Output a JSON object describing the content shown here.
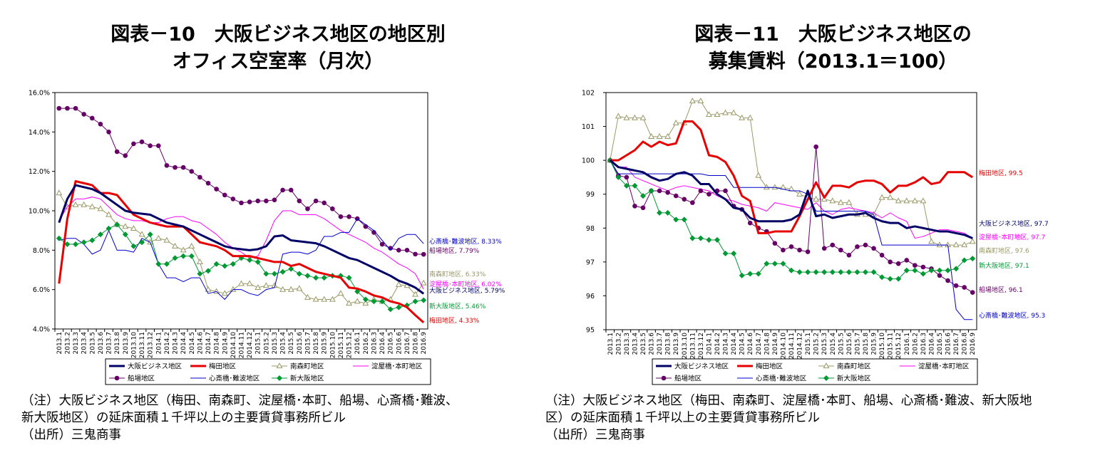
{
  "panels": [
    {
      "title_line1": "図表－10　大阪ビジネス地区の地区別",
      "title_line2": "オフィス空室率（月次）",
      "notes": [
        "（注）大阪ビジネス地区（梅田、南森町、淀屋橋･本町、船場、心斎橋･難波、",
        "新大阪地区）の延床面積１千坪以上の主要賃貸事務所ビル",
        "（出所）三鬼商事"
      ]
    },
    {
      "title_line1": "図表－11　大阪ビジネス地区の",
      "title_line2": "募集賃料（2013.1＝100）",
      "notes": [
        "（注）大阪ビジネス地区（梅田、南森町、淀屋橋･本町、船場、心斎橋･難波、新大阪地",
        "区）の延床面積１千坪以上の主要賃貸事務所ビル",
        "（出所）三鬼商事"
      ]
    }
  ],
  "colors": {
    "osaka": "#000066",
    "umeda": "#e60000",
    "minamimorimachi": "#999966",
    "yodoyabashi": "#ff00ff",
    "semba": "#660066",
    "shinsaibashi": "#0000cc",
    "shinosaka": "#009933"
  },
  "chart_data": [
    {
      "type": "line",
      "x": [
        "2013.1",
        "2013.2",
        "2013.3",
        "2013.4",
        "2013.5",
        "2013.6",
        "2013.7",
        "2013.8",
        "2013.9",
        "2013.10",
        "2013.11",
        "2013.12",
        "2014.1",
        "2014.2",
        "2014.3",
        "2014.4",
        "2014.5",
        "2014.6",
        "2014.7",
        "2014.8",
        "2014.9",
        "2014.10",
        "2014.11",
        "2014.12",
        "2015.1",
        "2015.2",
        "2015.3",
        "2015.4",
        "2015.5",
        "2015.6",
        "2015.7",
        "2015.8",
        "2015.9",
        "2015.10",
        "2015.11",
        "2015.12",
        "2016.1",
        "2016.2",
        "2016.3",
        "2016.4",
        "2016.5",
        "2016.6",
        "2016.7",
        "2016.8",
        "2016.9"
      ],
      "x_tick_labels": [
        "2013.1",
        "2013.2",
        "2013.3",
        "2013.4",
        "2013.5",
        "2013.6",
        "2013.7",
        "2013.8",
        "2013.9",
        "2013.10",
        "2013.11",
        "2013.12",
        "2014.1",
        "2014.2",
        "2014.3",
        "2014.4",
        "2014.5",
        "2014.6",
        "2014.7",
        "2014.8",
        "2014.9",
        "2014.10",
        "2014.11",
        "2014.12",
        "2015.1",
        "2015.2",
        "2015.3",
        "2015.4",
        "2015.5",
        "2015.6",
        "2015.7",
        "2015.8",
        "2015.9",
        "2015.10",
        "2015.11",
        "2015.12",
        "2016.1",
        "2016.2",
        "2016.3",
        "2016.4",
        "2016.5",
        "2016.6",
        "2016.7",
        "2016.8",
        "2016.9"
      ],
      "ylim": [
        4,
        16
      ],
      "y_ticks": [
        4,
        6,
        8,
        10,
        12,
        14,
        16
      ],
      "y_tick_labels": [
        "4.0%",
        "6.0%",
        "8.0%",
        "10.0%",
        "12.0%",
        "14.0%",
        "16.0%"
      ],
      "grid": false,
      "legend_placement": "bottom",
      "series": [
        {
          "key": "osaka",
          "name": "大阪ビジネス地区",
          "marker": "none",
          "width": 3,
          "values": [
            9.4,
            10.6,
            11.3,
            11.2,
            11.1,
            10.9,
            10.6,
            10.3,
            10.0,
            9.9,
            9.85,
            9.8,
            9.6,
            9.4,
            9.3,
            9.2,
            9.0,
            8.8,
            8.6,
            8.4,
            8.2,
            8.1,
            8.05,
            8.0,
            8.05,
            8.2,
            8.7,
            8.75,
            8.5,
            8.45,
            8.4,
            8.35,
            8.2,
            8.0,
            7.8,
            7.6,
            7.5,
            7.3,
            7.1,
            6.9,
            6.7,
            6.45,
            6.3,
            6.1,
            5.79
          ],
          "end_label": "大阪ビジネス地区, 5.79%"
        },
        {
          "key": "umeda",
          "name": "梅田地区",
          "marker": "none",
          "width": 3,
          "values": [
            6.3,
            9.6,
            11.5,
            11.4,
            11.3,
            10.9,
            10.9,
            10.8,
            10.3,
            9.8,
            9.6,
            9.4,
            9.3,
            9.2,
            9.2,
            9.2,
            8.8,
            8.4,
            8.3,
            8.2,
            8.0,
            7.7,
            7.7,
            7.7,
            7.6,
            7.5,
            7.4,
            7.4,
            7.2,
            7.3,
            7.1,
            6.9,
            6.8,
            6.7,
            6.6,
            6.1,
            6.05,
            5.9,
            5.7,
            5.6,
            5.4,
            5.3,
            5.1,
            4.7,
            4.33
          ],
          "end_label": "梅田地区, 4.33%"
        },
        {
          "key": "minamimorimachi",
          "name": "南森町地区",
          "marker": "triangle",
          "width": 1,
          "values": [
            10.9,
            10.2,
            10.3,
            10.3,
            10.2,
            10.1,
            9.8,
            9.3,
            9.2,
            9.1,
            8.8,
            8.4,
            8.6,
            8.5,
            8.2,
            8.0,
            8.2,
            7.4,
            6.0,
            5.9,
            5.8,
            6.0,
            6.3,
            6.3,
            6.1,
            6.2,
            6.2,
            6.0,
            6.0,
            6.05,
            5.6,
            5.5,
            5.5,
            5.5,
            5.8,
            5.3,
            5.4,
            5.3,
            5.5,
            5.4,
            5.5,
            6.25,
            6.2,
            5.75,
            6.33
          ],
          "end_label": "南森町地区, 6.33%"
        },
        {
          "key": "yodoyabashi",
          "name": "淀屋橋･本町地区",
          "marker": "none",
          "width": 1,
          "values": [
            9.5,
            10.2,
            10.6,
            10.6,
            10.7,
            10.6,
            10.2,
            9.8,
            9.6,
            9.5,
            9.5,
            9.4,
            9.4,
            9.6,
            9.7,
            9.7,
            9.5,
            9.4,
            9.1,
            8.8,
            8.4,
            8.1,
            7.9,
            7.6,
            7.7,
            8.5,
            9.5,
            10.0,
            10.0,
            9.8,
            9.8,
            9.8,
            9.6,
            9.3,
            9.0,
            8.8,
            8.6,
            8.4,
            8.1,
            7.9,
            7.6,
            7.3,
            7.1,
            6.8,
            6.02
          ],
          "end_label": "淀屋橋･本町地区, 6.02%"
        },
        {
          "key": "semba",
          "name": "船場地区",
          "marker": "circle",
          "width": 1,
          "values": [
            15.2,
            15.2,
            15.2,
            14.9,
            14.7,
            14.4,
            14.0,
            13.0,
            12.8,
            13.4,
            13.5,
            13.3,
            13.3,
            12.3,
            12.2,
            12.2,
            12.0,
            11.7,
            11.4,
            11.1,
            10.8,
            10.6,
            10.4,
            10.45,
            10.5,
            10.5,
            10.55,
            11.05,
            11.05,
            10.5,
            10.1,
            10.5,
            10.4,
            10.1,
            9.7,
            9.7,
            9.6,
            9.2,
            8.9,
            8.3,
            8.1,
            8.0,
            8.0,
            7.8,
            7.79
          ],
          "end_label": "船場地区, 7.79%"
        },
        {
          "key": "shinsaibashi",
          "name": "心斎橋･難波地区",
          "marker": "none",
          "width": 1,
          "values": [
            8.5,
            8.6,
            8.6,
            8.3,
            7.8,
            8.0,
            9.0,
            8.0,
            8.0,
            7.9,
            8.6,
            8.4,
            7.3,
            6.6,
            6.6,
            6.4,
            6.6,
            6.6,
            5.8,
            5.9,
            5.5,
            6.0,
            6.0,
            5.8,
            5.7,
            6.0,
            6.1,
            7.8,
            7.9,
            7.9,
            7.8,
            8.0,
            8.7,
            8.7,
            8.9,
            8.9,
            9.6,
            9.3,
            9.0,
            8.5,
            8.0,
            8.6,
            8.8,
            8.8,
            8.33
          ],
          "end_label": "心斎橋･難波地区, 8.33%"
        },
        {
          "key": "shinosaka",
          "name": "新大阪地区",
          "marker": "diamond",
          "width": 1,
          "values": [
            8.6,
            8.3,
            8.3,
            8.4,
            8.5,
            8.8,
            9.1,
            9.3,
            8.8,
            8.2,
            8.4,
            8.8,
            7.3,
            7.3,
            7.6,
            7.7,
            7.7,
            6.8,
            6.95,
            7.3,
            7.2,
            7.3,
            7.6,
            7.5,
            7.4,
            6.8,
            6.8,
            6.9,
            7.05,
            6.8,
            6.7,
            6.6,
            6.6,
            6.7,
            6.7,
            6.6,
            5.9,
            5.5,
            5.4,
            5.4,
            5.0,
            5.1,
            5.2,
            5.4,
            5.46
          ],
          "end_label": "新大阪地区, 5.46%"
        }
      ],
      "legend": [
        "大阪ビジネス地区",
        "梅田地区",
        "南森町地区",
        "淀屋橋･本町地区",
        "船場地区",
        "心斎橋･難波地区",
        "新大阪地区"
      ]
    },
    {
      "type": "line",
      "x": [
        "2013.1",
        "2013.2",
        "2013.3",
        "2013.4",
        "2013.5",
        "2013.6",
        "2013.7",
        "2013.8",
        "2013.9",
        "2013.10",
        "2013.11",
        "2013.12",
        "2014.1",
        "2014.2",
        "2014.3",
        "2014.4",
        "2014.5",
        "2014.6",
        "2014.7",
        "2014.8",
        "2014.9",
        "2014.10",
        "2014.11",
        "2014.12",
        "2015.1",
        "2015.2",
        "2015.3",
        "2015.4",
        "2015.5",
        "2015.6",
        "2015.7",
        "2015.8",
        "2015.9",
        "2015.10",
        "2015.11",
        "2015.12",
        "2016.1",
        "2016.2",
        "2016.3",
        "2016.4",
        "2016.5",
        "2016.6",
        "2016.7",
        "2016.8",
        "2016.9"
      ],
      "x_tick_labels": [
        "2013.1",
        "2013.2",
        "2013.3",
        "2013.4",
        "2013.5",
        "2013.6",
        "2013.7",
        "2013.8",
        "2013.9",
        "2013.10",
        "2013.11",
        "2013.12",
        "2014.1",
        "2014.2",
        "2014.3",
        "2014.4",
        "2014.5",
        "2014.6",
        "2014.7",
        "2014.8",
        "2014.9",
        "2014.10",
        "2014.11",
        "2014.12",
        "2015.1",
        "2015.2",
        "2015.3",
        "2015.4",
        "2015.5",
        "2015.6",
        "2015.7",
        "2015.8",
        "2015.9",
        "2015.10",
        "2015.11",
        "2015.12",
        "2016.1",
        "2016.2",
        "2016.3",
        "2016.4",
        "2016.5",
        "2016.6",
        "2016.7",
        "2016.8",
        "2016.9"
      ],
      "ylim": [
        95,
        102
      ],
      "y_ticks": [
        95,
        96,
        97,
        98,
        99,
        100,
        101,
        102
      ],
      "y_tick_labels": [
        "95",
        "96",
        "97",
        "98",
        "99",
        "100",
        "101",
        "102"
      ],
      "grid": false,
      "legend_placement": "bottom",
      "series": [
        {
          "key": "osaka",
          "name": "大阪ビジネス地区",
          "marker": "none",
          "width": 3,
          "values": [
            100.0,
            99.8,
            99.75,
            99.7,
            99.65,
            99.5,
            99.4,
            99.45,
            99.6,
            99.65,
            99.55,
            99.3,
            99.3,
            99.0,
            98.85,
            98.6,
            98.55,
            98.3,
            98.2,
            98.2,
            98.2,
            98.2,
            98.25,
            98.4,
            99.1,
            98.35,
            98.4,
            98.3,
            98.35,
            98.4,
            98.4,
            98.45,
            98.3,
            98.2,
            98.15,
            98.15,
            98.0,
            98.05,
            98.0,
            97.95,
            97.9,
            97.9,
            97.85,
            97.8,
            97.7
          ],
          "end_label": "大阪ビジネス地区, 97.7"
        },
        {
          "key": "umeda",
          "name": "梅田地区",
          "marker": "none",
          "width": 3,
          "values": [
            100.0,
            100.0,
            100.15,
            100.3,
            100.55,
            100.4,
            100.55,
            100.45,
            100.5,
            101.15,
            101.15,
            100.9,
            100.15,
            100.1,
            99.95,
            99.55,
            98.95,
            98.8,
            97.85,
            97.85,
            97.9,
            97.9,
            97.9,
            98.35,
            98.85,
            99.35,
            98.9,
            99.25,
            99.25,
            99.2,
            99.35,
            99.4,
            99.4,
            99.3,
            99.05,
            99.25,
            99.25,
            99.35,
            99.5,
            99.3,
            99.35,
            99.65,
            99.65,
            99.65,
            99.5
          ],
          "end_label": "梅田地区, 99.5"
        },
        {
          "key": "minamimorimachi",
          "name": "南森町地区",
          "marker": "triangle",
          "width": 1,
          "values": [
            100.0,
            101.3,
            101.25,
            101.25,
            101.25,
            100.7,
            100.7,
            100.7,
            101.1,
            101.1,
            101.75,
            101.75,
            101.35,
            101.35,
            101.4,
            101.4,
            101.25,
            101.25,
            99.55,
            99.2,
            99.2,
            99.2,
            99.15,
            99.0,
            98.9,
            98.85,
            98.85,
            98.8,
            98.75,
            98.75,
            98.4,
            98.4,
            98.4,
            98.9,
            98.9,
            98.8,
            98.8,
            98.8,
            98.8,
            97.6,
            97.5,
            97.5,
            97.5,
            97.5,
            97.6
          ],
          "end_label": "南森町地区, 97.6"
        },
        {
          "key": "yodoyabashi",
          "name": "淀屋橋･本町地区",
          "marker": "none",
          "width": 1,
          "values": [
            100.0,
            99.8,
            99.8,
            99.5,
            99.4,
            99.3,
            99.2,
            99.1,
            99.2,
            99.25,
            99.2,
            99.15,
            99.1,
            98.95,
            98.85,
            98.8,
            98.7,
            98.65,
            98.6,
            98.5,
            98.75,
            98.7,
            98.65,
            98.6,
            98.55,
            98.75,
            98.5,
            98.4,
            98.55,
            98.6,
            98.55,
            98.5,
            98.45,
            98.3,
            98.45,
            98.3,
            98.2,
            97.7,
            97.75,
            97.85,
            97.95,
            97.95,
            97.9,
            97.85,
            97.7
          ],
          "end_label": "淀屋橋･本町地区, 97.7"
        },
        {
          "key": "semba",
          "name": "船場地区",
          "marker": "circle",
          "width": 1,
          "values": [
            100.0,
            99.55,
            99.5,
            98.65,
            98.6,
            99.1,
            99.1,
            99.05,
            98.95,
            98.85,
            98.75,
            99.1,
            99.0,
            99.1,
            99.1,
            98.65,
            98.55,
            98.15,
            98.0,
            97.9,
            97.55,
            97.35,
            97.45,
            97.35,
            97.3,
            100.4,
            97.4,
            97.5,
            97.35,
            97.2,
            97.45,
            97.5,
            97.4,
            97.2,
            97.0,
            96.95,
            97.05,
            96.9,
            96.85,
            96.8,
            96.6,
            96.45,
            96.3,
            96.25,
            96.1
          ],
          "end_label": "船場地区, 96.1"
        },
        {
          "key": "shinsaibashi",
          "name": "心斎橋･難波地区",
          "marker": "none",
          "width": 1,
          "values": [
            100.0,
            99.6,
            99.6,
            99.6,
            99.6,
            99.6,
            99.6,
            99.6,
            99.6,
            99.6,
            99.6,
            99.6,
            99.55,
            99.55,
            99.55,
            99.2,
            99.2,
            99.2,
            99.2,
            99.2,
            99.2,
            99.15,
            99.1,
            99.1,
            99.0,
            98.5,
            98.5,
            98.5,
            98.5,
            98.5,
            98.5,
            98.5,
            98.4,
            97.5,
            97.5,
            97.5,
            97.5,
            97.5,
            97.5,
            97.5,
            97.5,
            97.5,
            95.6,
            95.3,
            95.3
          ],
          "end_label": "心斎橋･難波地区, 95.3"
        },
        {
          "key": "shinosaka",
          "name": "新大阪地区",
          "marker": "diamond",
          "width": 1,
          "values": [
            100.0,
            99.5,
            99.25,
            99.25,
            98.95,
            99.1,
            98.45,
            98.45,
            98.25,
            98.25,
            97.7,
            97.7,
            97.65,
            97.65,
            97.25,
            97.25,
            96.6,
            96.65,
            96.65,
            96.95,
            96.95,
            96.95,
            96.75,
            96.7,
            96.7,
            96.7,
            96.7,
            96.7,
            96.7,
            96.7,
            96.7,
            96.7,
            96.7,
            96.55,
            96.5,
            96.5,
            96.75,
            96.75,
            96.65,
            96.75,
            96.75,
            96.75,
            96.8,
            97.05,
            97.1
          ],
          "end_label": "新大阪地区, 97.1"
        }
      ],
      "legend": [
        "大阪ビジネス地区",
        "梅田地区",
        "南森町地区",
        "淀屋橋･本町地区",
        "船場地区",
        "心斎橋･難波地区",
        "新大阪地区"
      ]
    }
  ]
}
